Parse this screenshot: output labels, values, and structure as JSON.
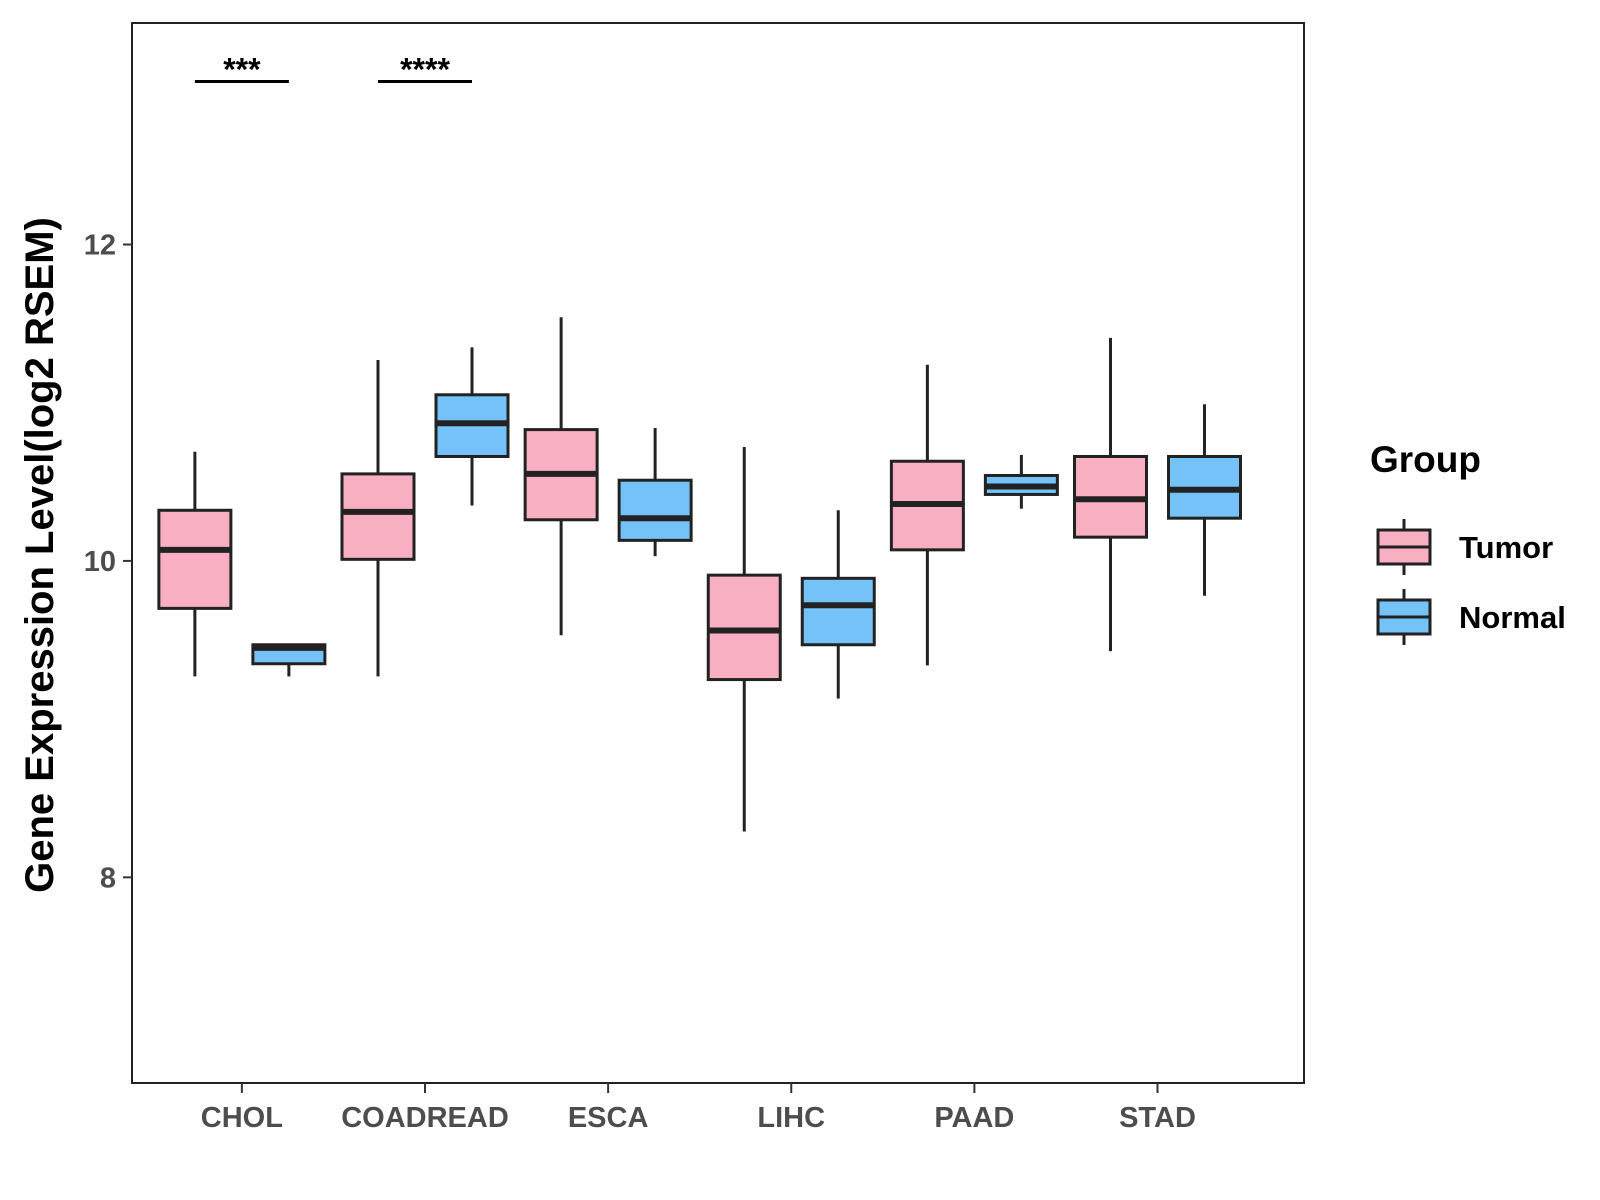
{
  "chart_data": {
    "type": "boxplot",
    "title": "",
    "xlabel": "",
    "ylabel": "Gene Expression Level(log2 RSEM)",
    "ylim": [
      6.7,
      13.4
    ],
    "yticks": [
      8,
      10,
      12
    ],
    "grid": false,
    "categories": [
      "CHOL",
      "COADREAD",
      "ESCA",
      "LIHC",
      "PAAD",
      "STAD"
    ],
    "legend": {
      "title": "Group",
      "position": "right",
      "entries": [
        "Tumor",
        "Normal"
      ]
    },
    "series": [
      {
        "name": "Tumor",
        "color": "#F8AFC2",
        "boxes": [
          {
            "category": "CHOL",
            "whisker_low": 9.27,
            "q1": 9.7,
            "median": 10.07,
            "q3": 10.32,
            "whisker_high": 10.69
          },
          {
            "category": "COADREAD",
            "whisker_low": 9.27,
            "q1": 10.01,
            "median": 10.31,
            "q3": 10.55,
            "whisker_high": 11.27
          },
          {
            "category": "ESCA",
            "whisker_low": 9.53,
            "q1": 10.26,
            "median": 10.55,
            "q3": 10.83,
            "whisker_high": 11.54
          },
          {
            "category": "LIHC",
            "whisker_low": 8.29,
            "q1": 9.25,
            "median": 9.56,
            "q3": 9.91,
            "whisker_high": 10.72
          },
          {
            "category": "PAAD",
            "whisker_low": 9.34,
            "q1": 10.07,
            "median": 10.36,
            "q3": 10.63,
            "whisker_high": 11.24
          },
          {
            "category": "STAD",
            "whisker_low": 9.43,
            "q1": 10.15,
            "median": 10.39,
            "q3": 10.66,
            "whisker_high": 11.41
          }
        ]
      },
      {
        "name": "Normal",
        "color": "#74C2F8",
        "boxes": [
          {
            "category": "CHOL",
            "whisker_low": 9.27,
            "q1": 9.35,
            "median": 9.45,
            "q3": 9.47,
            "whisker_high": 9.47
          },
          {
            "category": "COADREAD",
            "whisker_low": 10.35,
            "q1": 10.66,
            "median": 10.87,
            "q3": 11.05,
            "whisker_high": 11.35
          },
          {
            "category": "ESCA",
            "whisker_low": 10.03,
            "q1": 10.13,
            "median": 10.27,
            "q3": 10.51,
            "whisker_high": 10.84
          },
          {
            "category": "LIHC",
            "whisker_low": 9.13,
            "q1": 9.47,
            "median": 9.72,
            "q3": 9.89,
            "whisker_high": 10.32
          },
          {
            "category": "PAAD",
            "whisker_low": 10.33,
            "q1": 10.42,
            "median": 10.47,
            "q3": 10.54,
            "whisker_high": 10.67
          },
          {
            "category": "STAD",
            "whisker_low": 9.78,
            "q1": 10.27,
            "median": 10.45,
            "q3": 10.66,
            "whisker_high": 10.99
          }
        ]
      }
    ],
    "annotations": [
      {
        "category": "CHOL",
        "label": "***",
        "y": 13.03
      },
      {
        "category": "COADREAD",
        "label": "****",
        "y": 13.03
      }
    ]
  }
}
